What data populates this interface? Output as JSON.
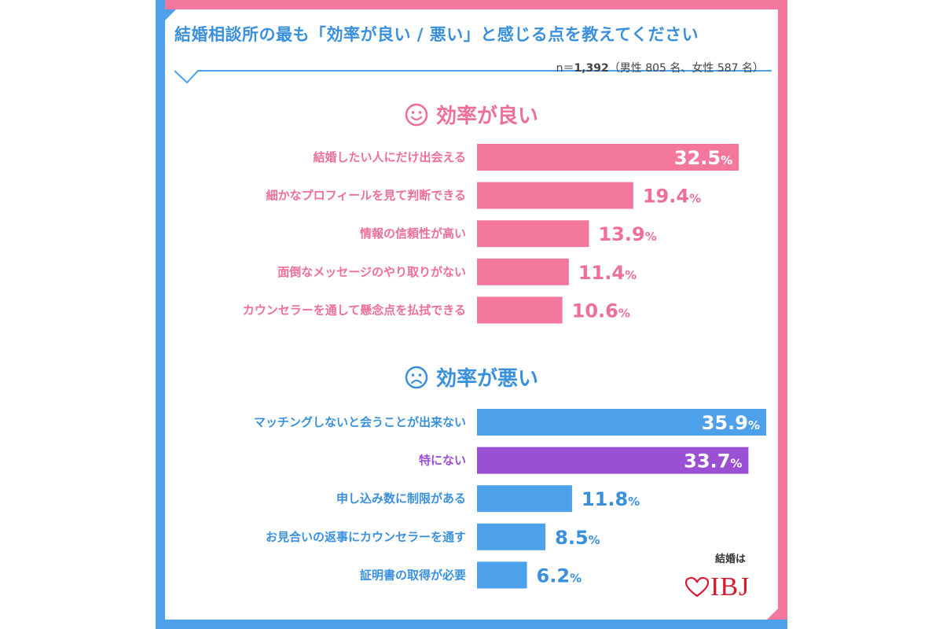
{
  "header": {
    "title": "結婚相談所の最も「効率が良い / 悪い」と感じる点を教えてください",
    "sample_prefix": "n＝",
    "sample_n": "1,392",
    "sample_detail": "（男性 805 名、女性 587 名）"
  },
  "sections": {
    "good_title": "効率が良い",
    "bad_title": "効率が悪い"
  },
  "logo": {
    "top_text": "結婚は",
    "brand": "IBJ"
  },
  "colors": {
    "pink": "#f4789e",
    "pink_text": "#ee6f97",
    "blue": "#4da0ea",
    "blue_text": "#3a90dd",
    "purple": "#9b4fd3",
    "logo_red": "#d7192f"
  },
  "chart_data": [
    {
      "type": "bar",
      "orientation": "horizontal",
      "title": "効率が良い",
      "categories": [
        "結婚したい人にだけ出会える",
        "細かなプロフィールを見て判断できる",
        "情報の信頼性が高い",
        "面倒なメッセージのやり取りがない",
        "カウンセラーを通して懸念点を払拭できる"
      ],
      "values": [
        32.5,
        19.4,
        13.9,
        11.4,
        10.6
      ],
      "unit": "%",
      "color": "#f4789e",
      "label_color": "#ee6f97"
    },
    {
      "type": "bar",
      "orientation": "horizontal",
      "title": "効率が悪い",
      "categories": [
        "マッチングしないと会うことが出来ない",
        "特にない",
        "申し込み数に制限がある",
        "お見合いの返事にカウンセラーを通す",
        "証明書の取得が必要"
      ],
      "values": [
        35.9,
        33.7,
        11.8,
        8.5,
        6.2
      ],
      "unit": "%",
      "color": "#4da0ea",
      "label_color": "#3a90dd",
      "highlight": {
        "category": "特にない",
        "color": "#9b4fd3"
      }
    }
  ]
}
